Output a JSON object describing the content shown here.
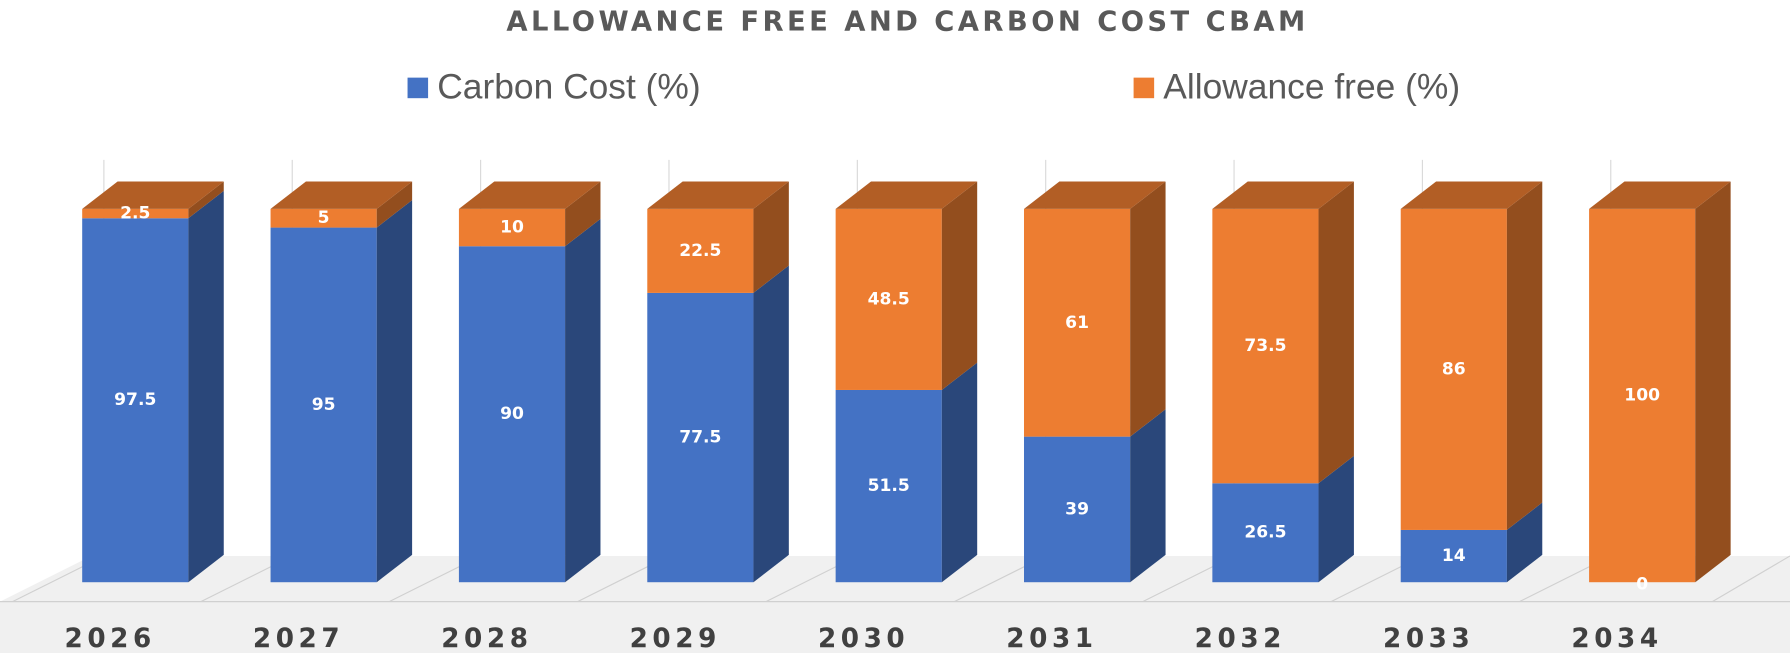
{
  "chart_data": {
    "type": "bar",
    "stacked": true,
    "three_d": true,
    "title": "ALLOWANCE FREE  AND  CARBON COST CBAM",
    "categories": [
      "2026",
      "2027",
      "2028",
      "2029",
      "2030",
      "2031",
      "2032",
      "2033",
      "2034"
    ],
    "series": [
      {
        "name": "Carbon Cost  (%)",
        "color": "#4472c4",
        "values": [
          97.5,
          95,
          90,
          77.5,
          51.5,
          39,
          26.5,
          14,
          0
        ]
      },
      {
        "name": "Allowance free (%)",
        "color": "#ed7d31",
        "values": [
          2.5,
          5,
          10,
          22.5,
          48.5,
          61,
          73.5,
          86,
          100
        ]
      }
    ],
    "ylim": [
      0,
      100
    ]
  }
}
